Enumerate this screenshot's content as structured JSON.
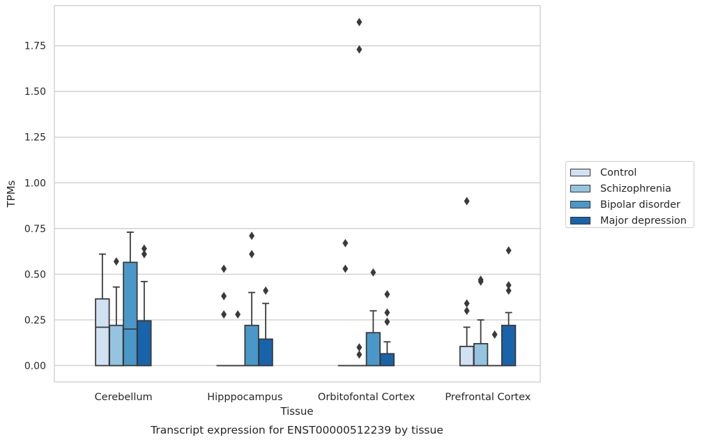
{
  "chart_data": {
    "type": "box",
    "title": "",
    "caption": "Transcript expression for ENST00000512239 by tissue",
    "xlabel": "Tissue",
    "ylabel": "TPMs",
    "ylim": [
      -0.09,
      1.97
    ],
    "yticks": [
      "0.00",
      "0.25",
      "0.50",
      "0.75",
      "1.00",
      "1.25",
      "1.50",
      "1.75"
    ],
    "grid": true,
    "legend_position": "right",
    "categories": [
      "Cerebellum",
      "Hipppocampus",
      "Orbitofontal Cortex",
      "Prefrontal Cortex"
    ],
    "series": [
      {
        "name": "Control",
        "color": "#d0e1f2",
        "boxes": [
          {
            "min": 0,
            "q1": 0,
            "median": 0.21,
            "q3": 0.365,
            "whisker_high": 0.61,
            "outliers": []
          },
          {
            "min": 0,
            "q1": 0,
            "median": 0,
            "q3": 0,
            "whisker_high": 0,
            "outliers": [
              0.28,
              0.38,
              0.53
            ]
          },
          {
            "min": 0,
            "q1": 0,
            "median": 0,
            "q3": 0,
            "whisker_high": 0,
            "outliers": [
              0.53,
              0.67
            ]
          },
          {
            "min": 0,
            "q1": 0,
            "median": 0,
            "q3": 0.105,
            "whisker_high": 0.21,
            "outliers": [
              0.3,
              0.34,
              0.9
            ]
          }
        ]
      },
      {
        "name": "Schizophrenia",
        "color": "#94c4df",
        "boxes": [
          {
            "min": 0,
            "q1": 0,
            "median": 0,
            "q3": 0.22,
            "whisker_high": 0.43,
            "outliers": [
              0.57
            ]
          },
          {
            "min": 0,
            "q1": 0,
            "median": 0,
            "q3": 0,
            "whisker_high": 0,
            "outliers": [
              0.28
            ]
          },
          {
            "min": 0,
            "q1": 0,
            "median": 0,
            "q3": 0,
            "whisker_high": 0,
            "outliers": [
              0.06,
              0.1,
              1.73,
              1.88
            ]
          },
          {
            "min": 0,
            "q1": 0,
            "median": 0,
            "q3": 0.12,
            "whisker_high": 0.25,
            "outliers": [
              0.46,
              0.47
            ]
          }
        ]
      },
      {
        "name": "Bipolar disorder",
        "color": "#4a98c9",
        "boxes": [
          {
            "min": 0,
            "q1": 0,
            "median": 0.2,
            "q3": 0.565,
            "whisker_high": 0.73,
            "outliers": []
          },
          {
            "min": 0,
            "q1": 0,
            "median": 0,
            "q3": 0.22,
            "whisker_high": 0.4,
            "outliers": [
              0.61,
              0.71
            ]
          },
          {
            "min": 0,
            "q1": 0,
            "median": 0,
            "q3": 0.18,
            "whisker_high": 0.3,
            "outliers": [
              0.51
            ]
          },
          {
            "min": 0,
            "q1": 0,
            "median": 0,
            "q3": 0,
            "whisker_high": 0,
            "outliers": [
              0.17
            ]
          }
        ]
      },
      {
        "name": "Major depression",
        "color": "#1764ab",
        "boxes": [
          {
            "min": 0,
            "q1": 0,
            "median": 0,
            "q3": 0.245,
            "whisker_high": 0.46,
            "outliers": [
              0.61,
              0.64
            ]
          },
          {
            "min": 0,
            "q1": 0,
            "median": 0,
            "q3": 0.145,
            "whisker_high": 0.34,
            "outliers": [
              0.41
            ]
          },
          {
            "min": 0,
            "q1": 0,
            "median": 0,
            "q3": 0.065,
            "whisker_high": 0.13,
            "outliers": [
              0.24,
              0.29,
              0.39
            ]
          },
          {
            "min": 0,
            "q1": 0,
            "median": 0,
            "q3": 0.22,
            "whisker_high": 0.29,
            "outliers": [
              0.41,
              0.44,
              0.63
            ]
          }
        ]
      }
    ]
  }
}
